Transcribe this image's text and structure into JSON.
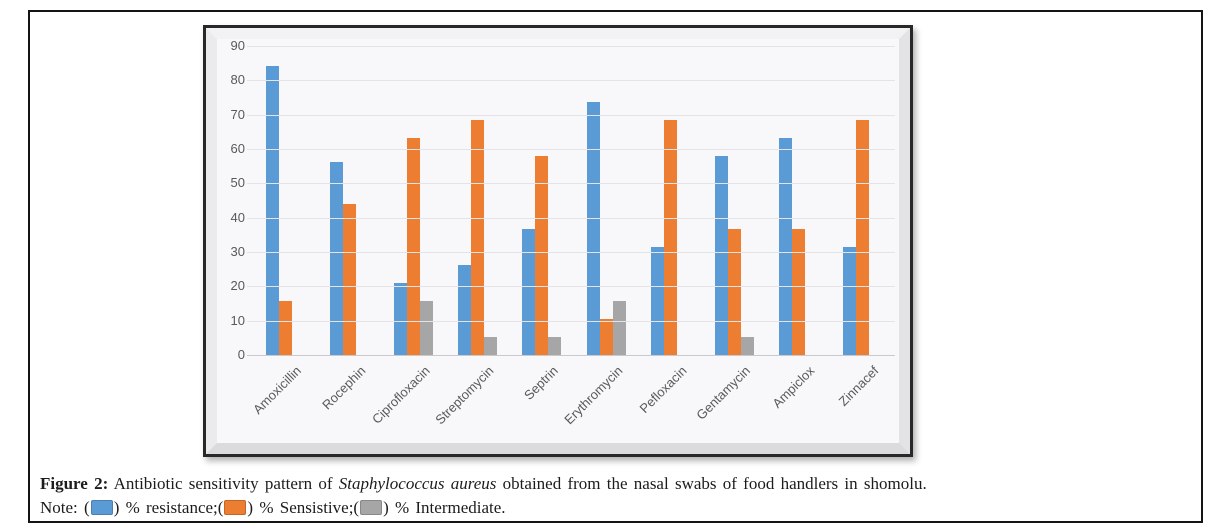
{
  "figure": {
    "caption": {
      "label": "Figure 2:",
      "text_before_italic": "Antibiotic sensitivity pattern of",
      "italic_text": "Staphylococcus aureus",
      "text_after_italic": "obtained from the nasal swabs of food handlers in shomolu."
    },
    "note": {
      "seg0": "Note: (",
      "seg1": ") % resistance;(",
      "seg2": ") % Sensistive;(",
      "seg3": ") % Intermediate."
    }
  },
  "chart_data": {
    "type": "bar",
    "title": "",
    "xlabel": "",
    "ylabel": "",
    "categories": [
      "Amoxicillin",
      "Rocephin",
      "Ciprofloxacin",
      "Streptomycin",
      "Septrin",
      "Erythromycin",
      "Pefloxacin",
      "Gentamycin",
      "Ampiclox",
      "Zinnacef"
    ],
    "series": [
      {
        "name": "% resistance",
        "color": "#5B9BD5",
        "values": [
          84.2,
          56.1,
          21.1,
          26.3,
          36.8,
          73.7,
          31.6,
          57.9,
          63.2,
          31.6
        ]
      },
      {
        "name": "% Sensistive",
        "color": "#ED7D31",
        "values": [
          15.8,
          43.9,
          63.2,
          68.4,
          57.9,
          10.5,
          68.4,
          36.8,
          36.8,
          68.4
        ]
      },
      {
        "name": "% Intermediate",
        "color": "#A6A6A6",
        "values": [
          0,
          0,
          15.8,
          5.3,
          5.3,
          15.8,
          0,
          5.3,
          0,
          0
        ]
      }
    ],
    "ylim": [
      0,
      90
    ],
    "yticks": [
      0,
      10,
      20,
      30,
      40,
      50,
      60,
      70,
      80,
      90
    ],
    "grid": true,
    "legend_position": "below-figure-note",
    "colors": {
      "axis_label": "#595959",
      "gridline": "#e4e4e8",
      "axis_line": "#c9c9cd",
      "plot_background": "#f8f8fb",
      "frame_border": "#282828",
      "page_border": "#141414"
    }
  }
}
